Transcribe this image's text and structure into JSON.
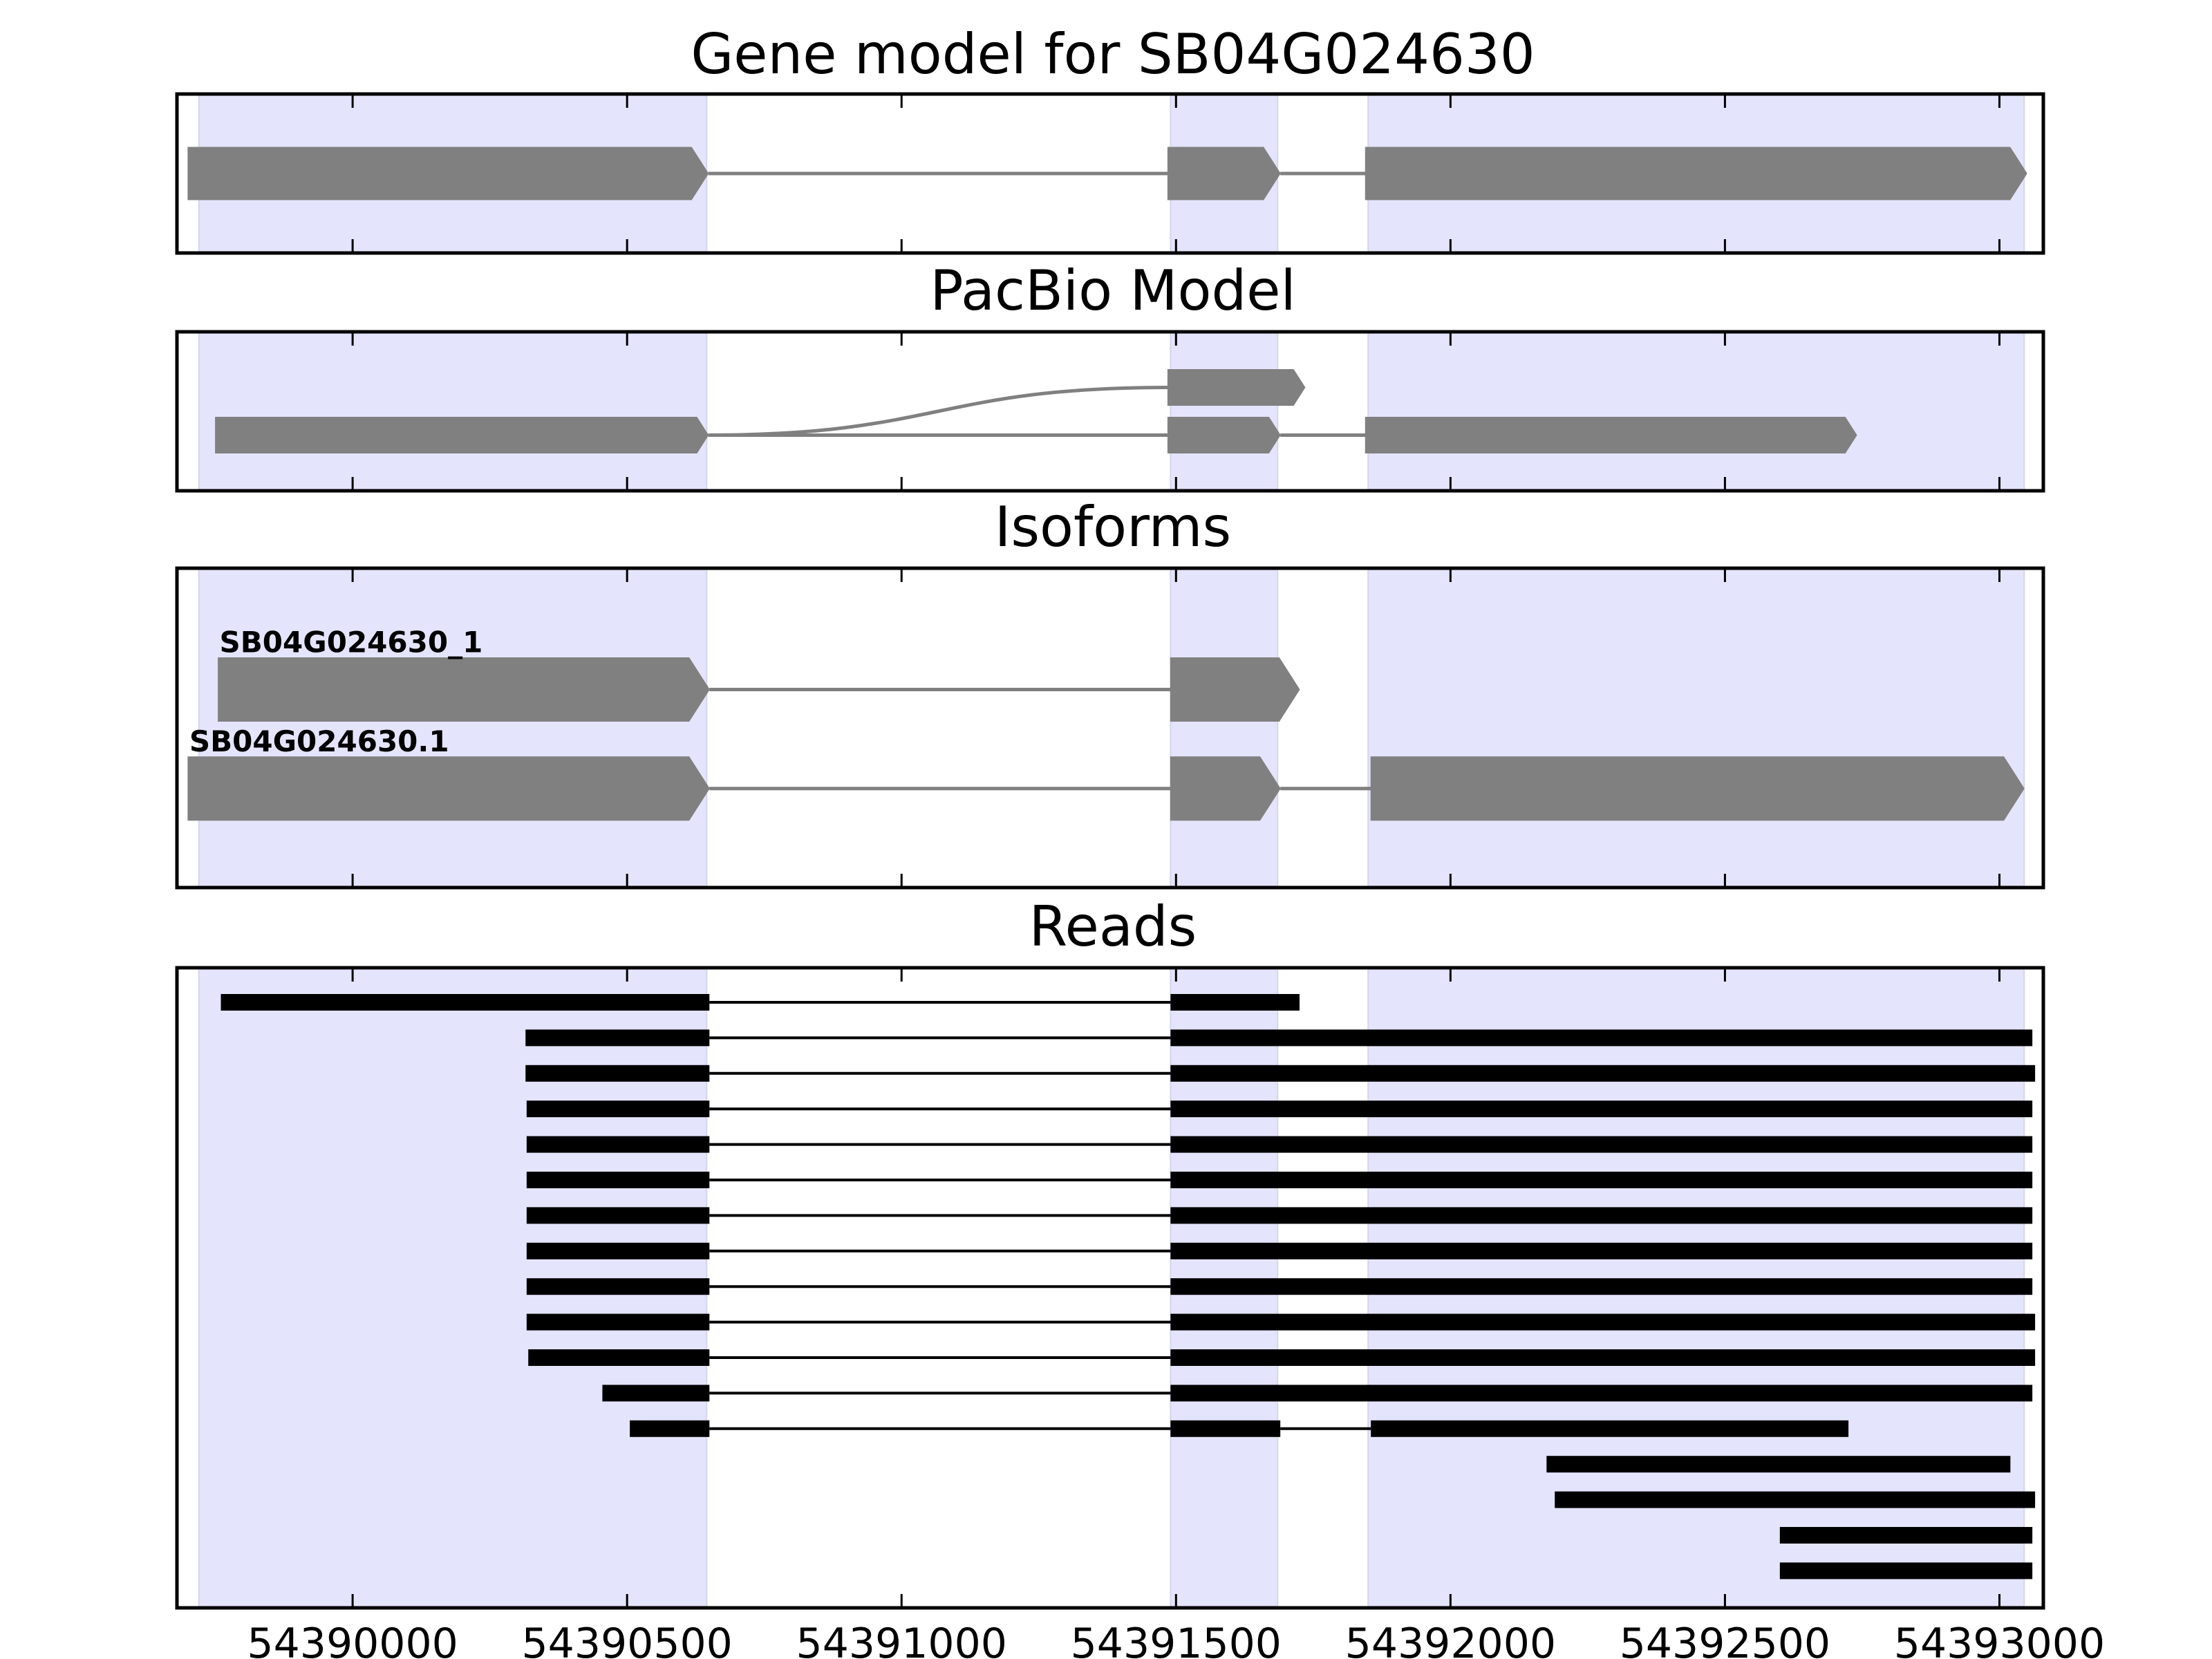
{
  "chart_data": {
    "type": "gene-structure",
    "x_domain": [
      54389680,
      54393080
    ],
    "x_ticks": [
      54390000,
      54390500,
      54391000,
      54391500,
      54392000,
      54392500,
      54393000
    ],
    "exon_regions": [
      [
        54389720,
        54390645
      ],
      [
        54391490,
        54391685
      ],
      [
        54391850,
        54393045
      ]
    ],
    "colors": {
      "shade": "#e4e4fc",
      "feature": "#808080",
      "read": "#000000",
      "axis": "#000000"
    },
    "panels": [
      {
        "id": "gene-model",
        "title": "Gene model for SB04G024630",
        "tracks": [
          {
            "label": "",
            "y": 0.5,
            "exons": [
              [
                54389700,
                54390648
              ],
              [
                54391485,
                54391690
              ],
              [
                54391845,
                54393050
              ]
            ],
            "links": []
          }
        ]
      },
      {
        "id": "pacbio",
        "title": "PacBio Model",
        "tracks": [
          {
            "label": "",
            "y": 0.65,
            "exons": [
              [
                54389750,
                54390648
              ],
              [
                54391485,
                54391690
              ],
              [
                54391845,
                54392740
              ]
            ],
            "links": []
          },
          {
            "label": "",
            "y": 0.35,
            "exons": [
              [
                54391485,
                54391735
              ]
            ],
            "links": [
              [
                54390648,
                0.65,
                54391485,
                0.35
              ]
            ]
          }
        ]
      },
      {
        "id": "isoforms",
        "title": "Isoforms",
        "tracks": [
          {
            "label": "SB04G024630_1",
            "y": 0.38,
            "exons": [
              [
                54389755,
                54390650
              ],
              [
                54391490,
                54391725
              ]
            ],
            "links": []
          },
          {
            "label": "SB04G024630.1",
            "y": 0.69,
            "exons": [
              [
                54389700,
                54390650
              ],
              [
                54391490,
                54391690
              ],
              [
                54391855,
                54393045
              ]
            ],
            "links": []
          }
        ]
      },
      {
        "id": "reads",
        "title": "Reads",
        "reads": [
          [
            [
              54389760,
              54390650
            ],
            [
              54391490,
              54391725
            ]
          ],
          [
            [
              54390315,
              54390650
            ],
            [
              54391490,
              54393060
            ]
          ],
          [
            [
              54390315,
              54390650
            ],
            [
              54391490,
              54393065
            ]
          ],
          [
            [
              54390317,
              54390650
            ],
            [
              54391490,
              54393060
            ]
          ],
          [
            [
              54390317,
              54390650
            ],
            [
              54391490,
              54393060
            ]
          ],
          [
            [
              54390317,
              54390650
            ],
            [
              54391490,
              54393060
            ]
          ],
          [
            [
              54390317,
              54390650
            ],
            [
              54391490,
              54393060
            ]
          ],
          [
            [
              54390317,
              54390650
            ],
            [
              54391490,
              54393060
            ]
          ],
          [
            [
              54390317,
              54390650
            ],
            [
              54391490,
              54393060
            ]
          ],
          [
            [
              54390317,
              54390650
            ],
            [
              54391490,
              54393065
            ]
          ],
          [
            [
              54390320,
              54390650
            ],
            [
              54391490,
              54393065
            ]
          ],
          [
            [
              54390455,
              54390650
            ],
            [
              54391490,
              54393060
            ]
          ],
          [
            [
              54390505,
              54390650
            ],
            [
              54391490,
              54391690
            ],
            [
              54391855,
              54392725
            ]
          ],
          [
            [
              54392175,
              54393020
            ]
          ],
          [
            [
              54392190,
              54393065
            ]
          ],
          [
            [
              54392600,
              54393060
            ]
          ],
          [
            [
              54392600,
              54393060
            ]
          ]
        ]
      }
    ]
  }
}
